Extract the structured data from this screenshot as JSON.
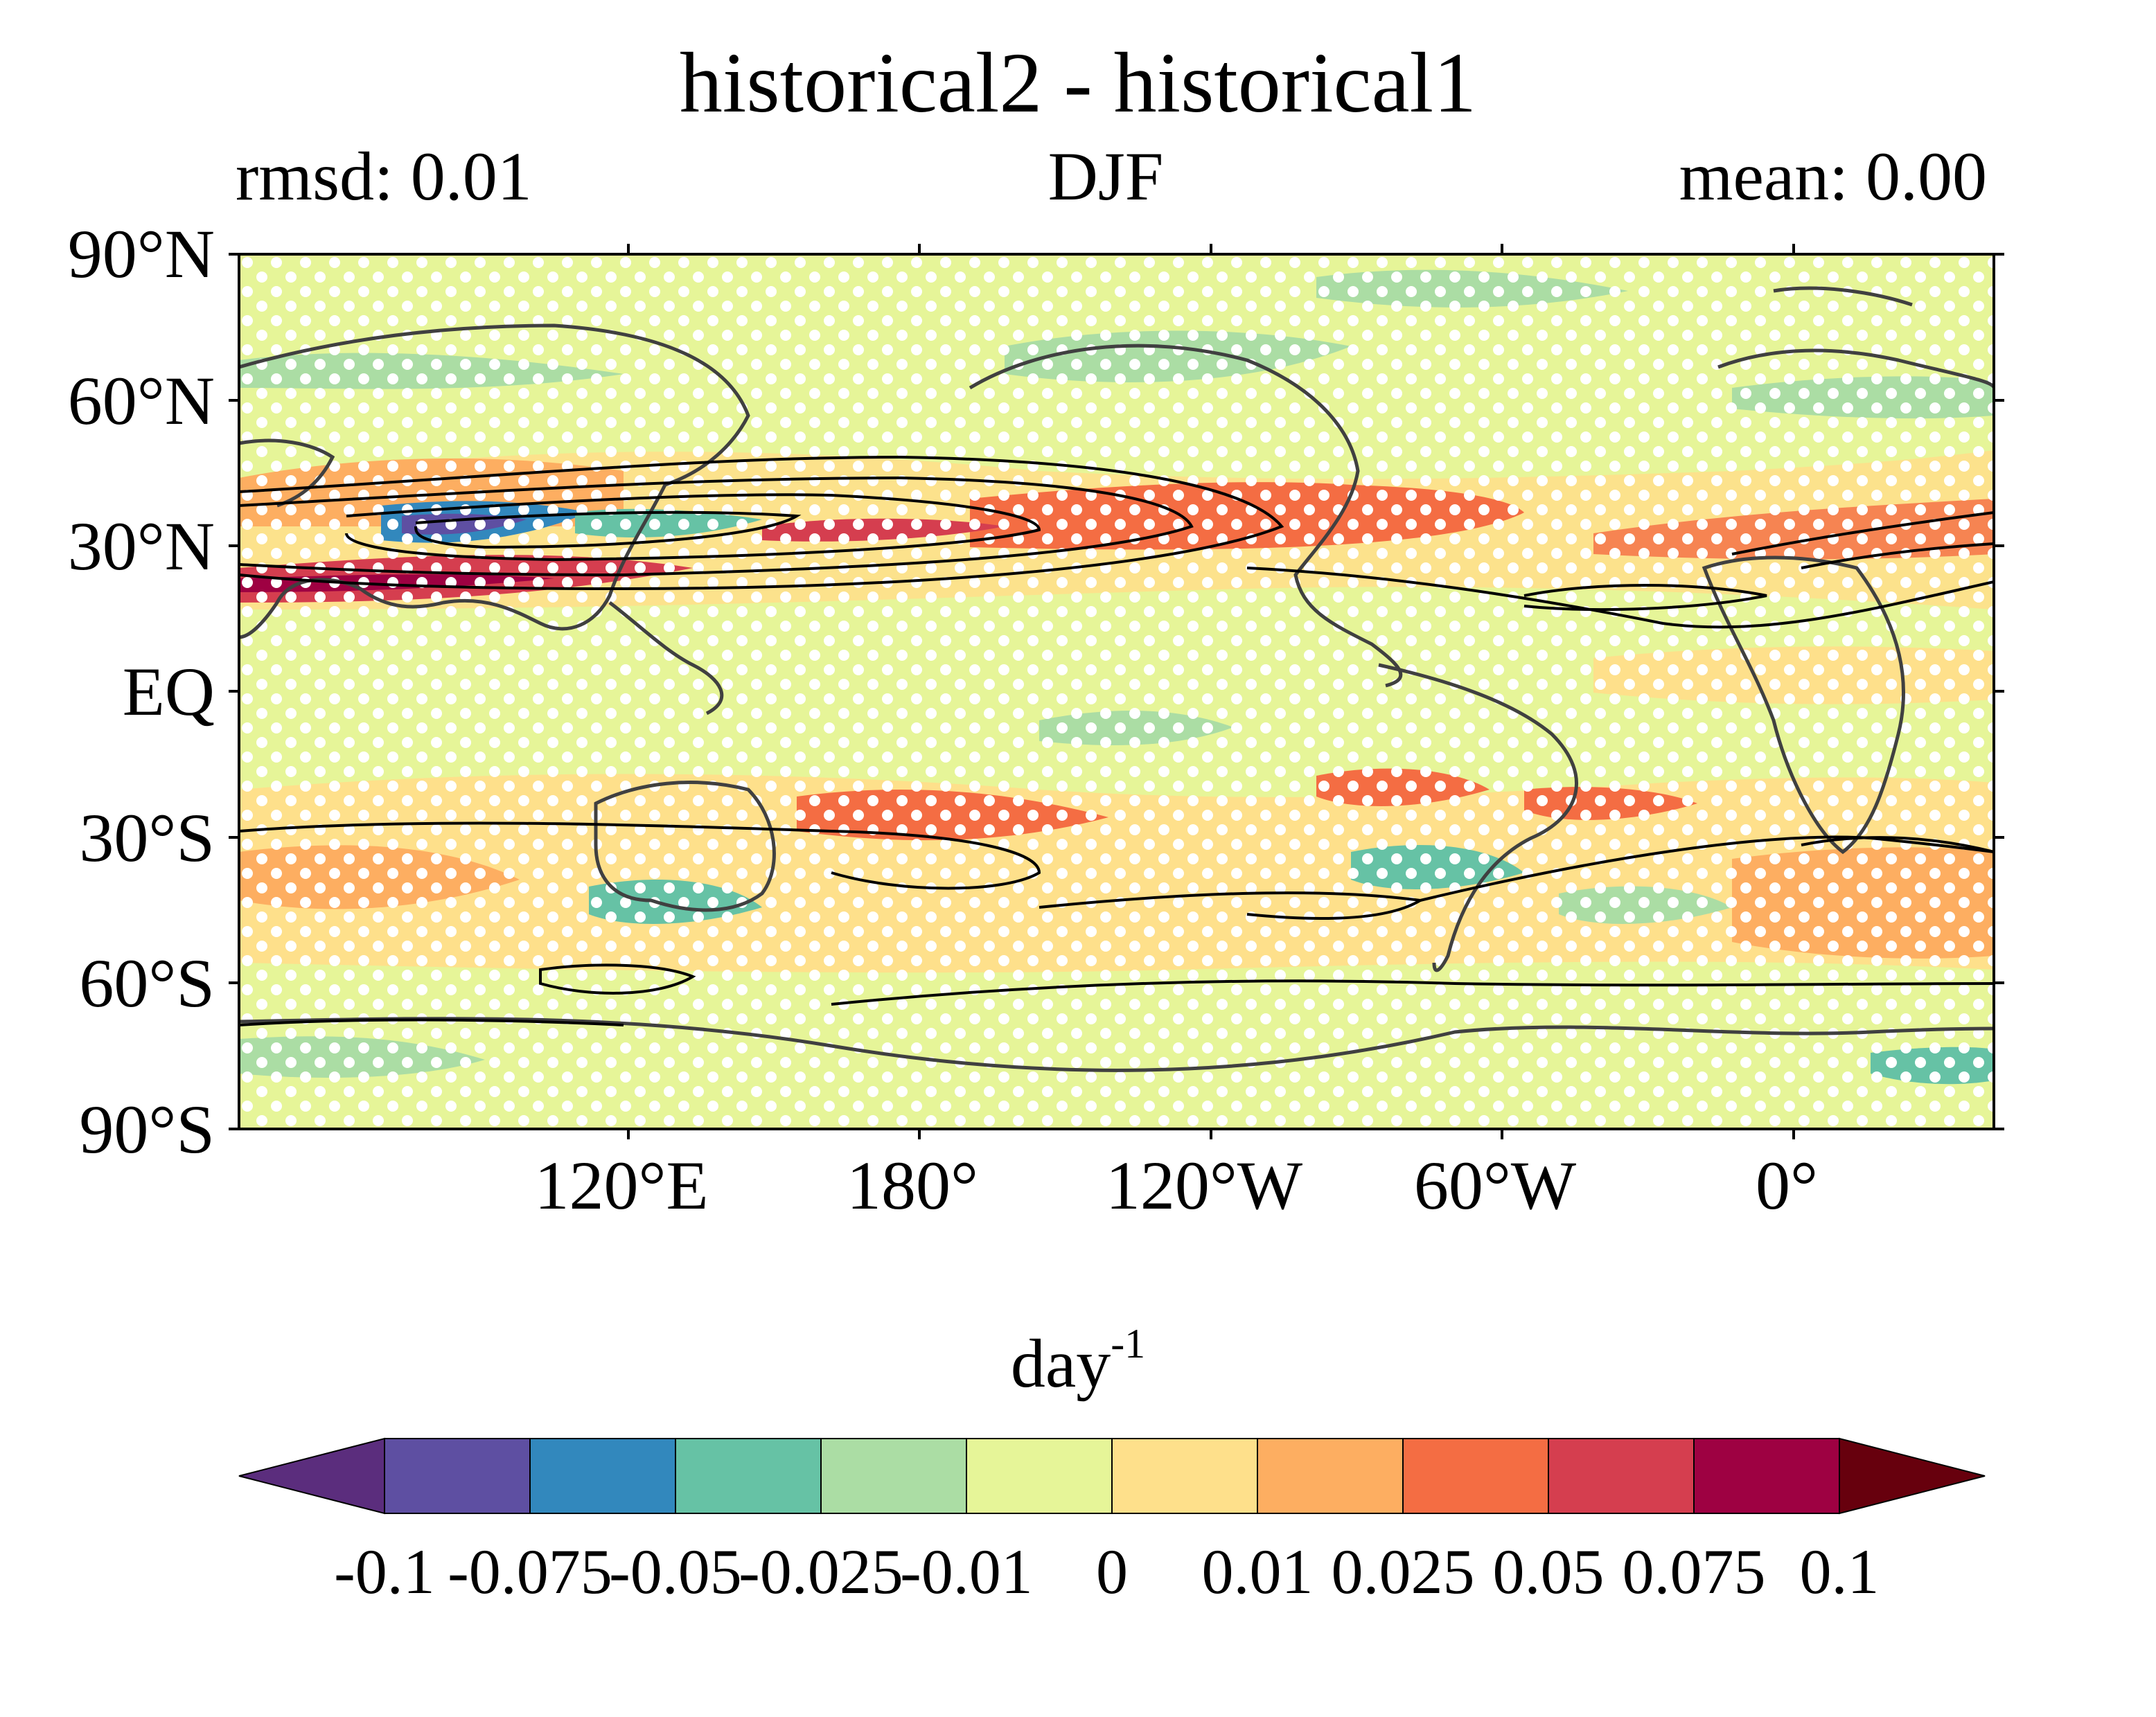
{
  "figure": {
    "title": "historical2 - historical1",
    "rmsd_label": "rmsd: 0.01",
    "season": "DJF",
    "mean_label": "mean: 0.00"
  },
  "map": {
    "lat_labels": [
      "90°N",
      "60°N",
      "30°N",
      "EQ",
      "30°S",
      "60°S",
      "90°S"
    ],
    "lon_labels": [
      "120°E",
      "180°",
      "120°W",
      "60°W",
      "0°"
    ],
    "central_longitude": 180,
    "projection": "PlateCarree",
    "stippling": "white dots",
    "contours": "black lines"
  },
  "colorbar": {
    "unit": "day",
    "unit_exponent": "-1",
    "levels": [
      "-0.1",
      "-0.075",
      "-0.05",
      "-0.025",
      "-0.01",
      "0",
      "0.01",
      "0.025",
      "0.05",
      "0.075",
      "0.1"
    ],
    "colors": [
      "#5e4fa2",
      "#3288bd",
      "#66c2a5",
      "#abdda4",
      "#e6f598",
      "#fee08b",
      "#fdae61",
      "#f46d43",
      "#d53e4f",
      "#9e0142"
    ],
    "under_color": "#5b2d7d",
    "over_color": "#67000d",
    "extend": "both"
  },
  "colors": {
    "background_field": "#e6f598",
    "land_outline": "#404040",
    "contour": "#000000",
    "stipple": "#ffffff"
  }
}
